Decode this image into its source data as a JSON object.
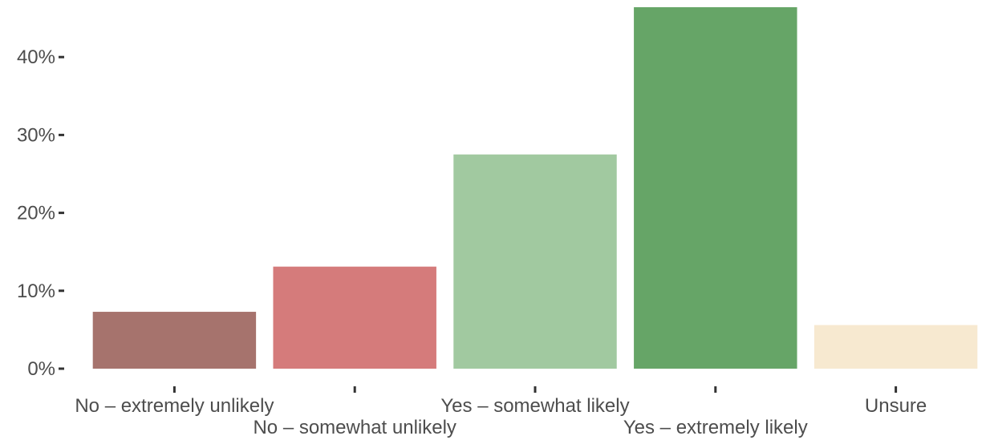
{
  "chart_data": {
    "type": "bar",
    "title": "",
    "xlabel": "",
    "ylabel": "",
    "categories": [
      "No – extremely unlikely",
      "No – somewhat unlikely",
      "Yes – somewhat likely",
      "Yes – extremely likely",
      "Unsure"
    ],
    "values": [
      7.3,
      13.1,
      27.5,
      46.4,
      5.6
    ],
    "colors": [
      "#a6736d",
      "#d57b7b",
      "#a1c9a0",
      "#66a567",
      "#f7e9d0"
    ],
    "ylim": [
      0,
      46.4
    ],
    "yticks": [
      0,
      10,
      20,
      30,
      40
    ],
    "ytick_labels": [
      "0%",
      "10%",
      "20%",
      "30%",
      "40%"
    ],
    "grid": false,
    "legend": "none"
  }
}
